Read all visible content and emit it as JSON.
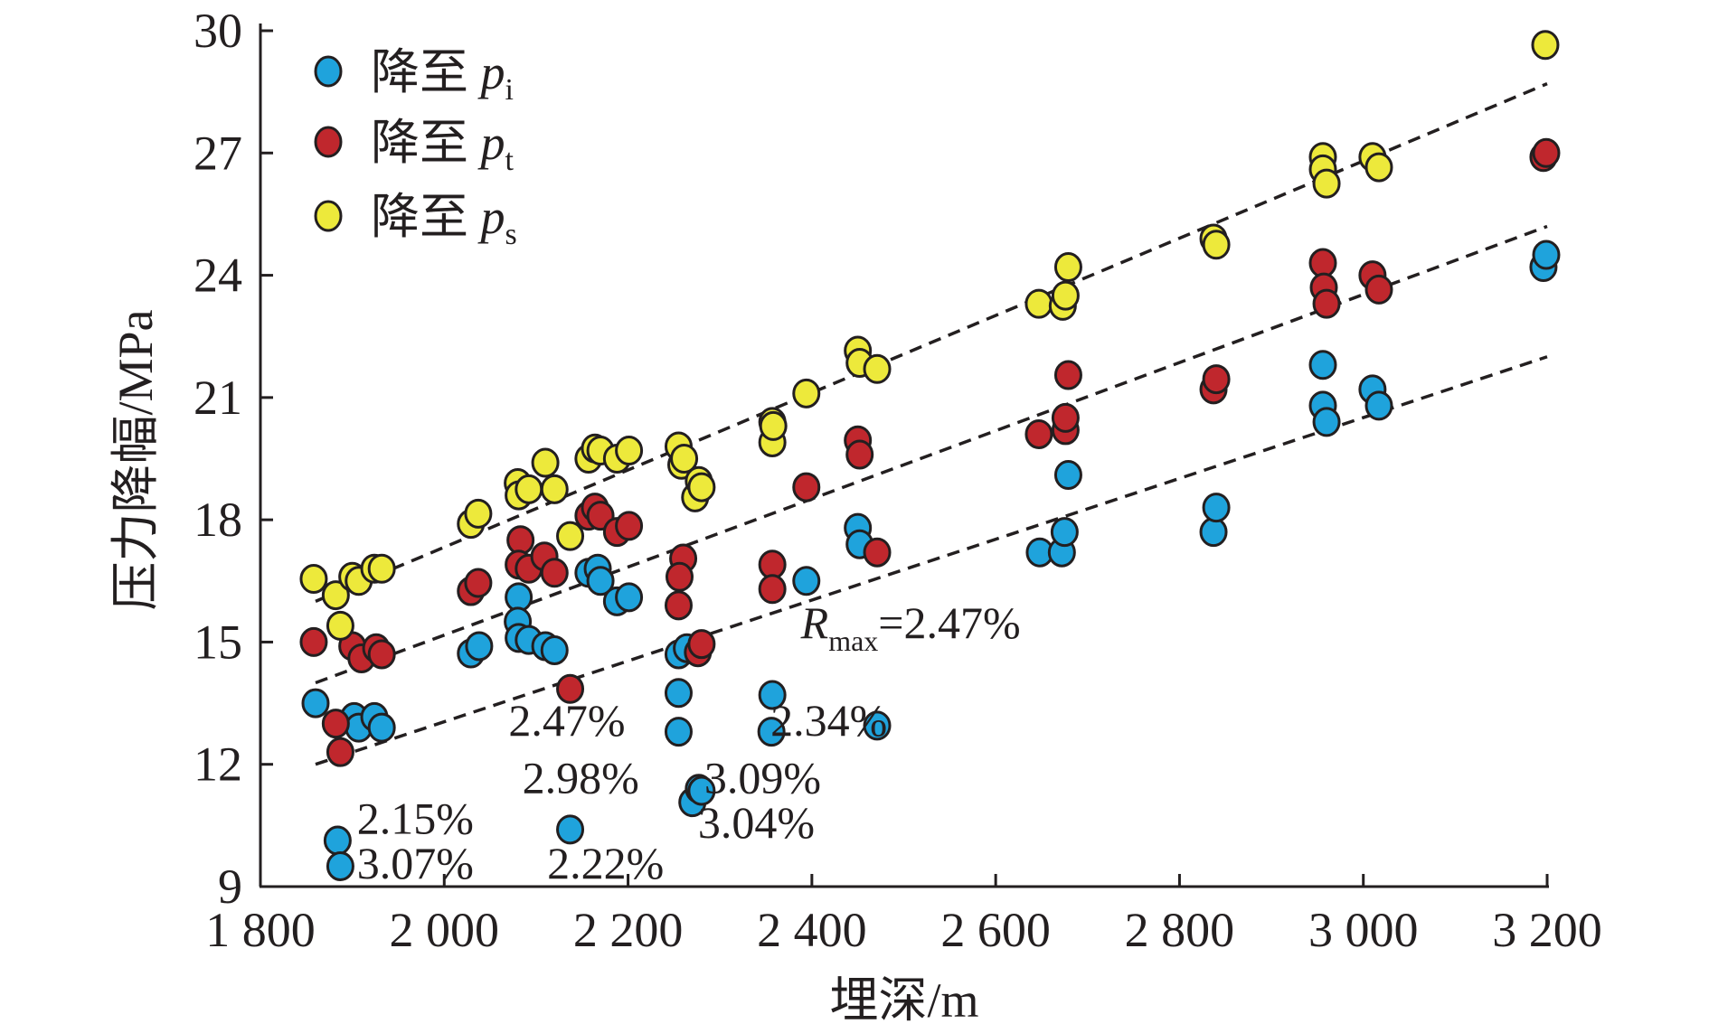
{
  "chart_data": {
    "type": "scatter",
    "title": "",
    "xlabel": "埋深/m",
    "ylabel": "压力降幅/MPa",
    "xlim": [
      1800,
      3200
    ],
    "ylim": [
      9,
      30
    ],
    "xticks": [
      1800,
      2000,
      2200,
      2400,
      2600,
      2800,
      3000,
      3200
    ],
    "xtick_labels": [
      "1 800",
      "2 000",
      "2 200",
      "2 400",
      "2 600",
      "2 800",
      "3 000",
      "3 200"
    ],
    "yticks": [
      9,
      12,
      15,
      18,
      21,
      24,
      27,
      30
    ],
    "ytick_labels": [
      "9",
      "12",
      "15",
      "18",
      "21",
      "24",
      "27",
      "30"
    ],
    "grid": false,
    "legend_position": "top-left",
    "series": [
      {
        "name": "降至 pi",
        "legend_main": "降至 ",
        "legend_p": "p",
        "legend_sub": "i",
        "color": "#1fa3dc",
        "points": [
          [
            1860,
            13.5
          ],
          [
            1902,
            13.16
          ],
          [
            1907,
            12.9
          ],
          [
            1924,
            13.16
          ],
          [
            1932,
            12.9
          ],
          [
            1884,
            10.13
          ],
          [
            1887,
            9.5
          ],
          [
            2029,
            14.72
          ],
          [
            2038,
            14.9
          ],
          [
            2081,
            16.1
          ],
          [
            2080,
            15.5
          ],
          [
            2081,
            15.1
          ],
          [
            2092,
            15.05
          ],
          [
            2110,
            14.9
          ],
          [
            2120,
            14.8
          ],
          [
            2157,
            16.7
          ],
          [
            2167,
            16.8
          ],
          [
            2170,
            16.5
          ],
          [
            2188,
            16.0
          ],
          [
            2201,
            16.1
          ],
          [
            2255,
            14.7
          ],
          [
            2264,
            14.85
          ],
          [
            2255,
            13.75
          ],
          [
            2255,
            12.8
          ],
          [
            2137,
            10.4
          ],
          [
            2270,
            11.07
          ],
          [
            2277,
            11.4
          ],
          [
            2280,
            11.35
          ],
          [
            2357,
            13.7
          ],
          [
            2356,
            12.8
          ],
          [
            2471,
            12.95
          ],
          [
            2394,
            16.5
          ],
          [
            2450,
            17.8
          ],
          [
            2452,
            17.4
          ],
          [
            2648,
            17.2
          ],
          [
            2672,
            17.2
          ],
          [
            2675,
            17.7
          ],
          [
            2679,
            19.1
          ],
          [
            2837,
            17.7
          ],
          [
            2840,
            18.3
          ],
          [
            2956,
            21.8
          ],
          [
            2956,
            20.8
          ],
          [
            2960,
            20.4
          ],
          [
            3010,
            21.2
          ],
          [
            3017,
            20.8
          ],
          [
            3196,
            24.2
          ],
          [
            3199,
            24.5
          ]
        ],
        "trend": [
          [
            1860,
            12.0
          ],
          [
            3200,
            22.0
          ]
        ]
      },
      {
        "name": "降至 pt",
        "legend_main": "降至 ",
        "legend_p": "p",
        "legend_sub": "t",
        "color": "#c0272d",
        "points": [
          [
            1858,
            15.0
          ],
          [
            1882,
            13.0
          ],
          [
            1887,
            12.3
          ],
          [
            1900,
            14.9
          ],
          [
            1910,
            14.6
          ],
          [
            1926,
            14.85
          ],
          [
            1932,
            14.7
          ],
          [
            2029,
            16.25
          ],
          [
            2037,
            16.45
          ],
          [
            2083,
            17.5
          ],
          [
            2081,
            16.9
          ],
          [
            2092,
            16.8
          ],
          [
            2109,
            17.1
          ],
          [
            2120,
            16.7
          ],
          [
            2137,
            13.85
          ],
          [
            2157,
            18.1
          ],
          [
            2164,
            18.3
          ],
          [
            2170,
            18.1
          ],
          [
            2188,
            17.7
          ],
          [
            2201,
            17.85
          ],
          [
            2255,
            15.9
          ],
          [
            2260,
            17.05
          ],
          [
            2256,
            16.6
          ],
          [
            2276,
            14.75
          ],
          [
            2280,
            14.95
          ],
          [
            2357,
            16.9
          ],
          [
            2357,
            16.3
          ],
          [
            2394,
            18.8
          ],
          [
            2450,
            19.95
          ],
          [
            2452,
            19.6
          ],
          [
            2471,
            17.2
          ],
          [
            2647,
            20.1
          ],
          [
            2676,
            20.2
          ],
          [
            2676,
            20.5
          ],
          [
            2679,
            21.55
          ],
          [
            2837,
            21.2
          ],
          [
            2840,
            21.45
          ],
          [
            2956,
            24.3
          ],
          [
            2957,
            23.7
          ],
          [
            2960,
            23.3
          ],
          [
            3010,
            24.0
          ],
          [
            3017,
            23.65
          ],
          [
            3196,
            26.9
          ],
          [
            3199,
            27.0
          ]
        ],
        "trend": [
          [
            1860,
            14.0
          ],
          [
            3200,
            25.2
          ]
        ]
      },
      {
        "name": "降至 ps",
        "legend_main": "降至 ",
        "legend_p": "p",
        "legend_sub": "s",
        "color": "#ede93b",
        "points": [
          [
            1858,
            16.55
          ],
          [
            1882,
            16.15
          ],
          [
            1887,
            15.4
          ],
          [
            1900,
            16.6
          ],
          [
            1907,
            16.5
          ],
          [
            1924,
            16.8
          ],
          [
            1932,
            16.8
          ],
          [
            2029,
            17.9
          ],
          [
            2037,
            18.15
          ],
          [
            2080,
            18.9
          ],
          [
            2081,
            18.6
          ],
          [
            2092,
            18.75
          ],
          [
            2110,
            19.4
          ],
          [
            2120,
            18.75
          ],
          [
            2137,
            17.6
          ],
          [
            2157,
            19.5
          ],
          [
            2164,
            19.75
          ],
          [
            2170,
            19.7
          ],
          [
            2188,
            19.5
          ],
          [
            2201,
            19.7
          ],
          [
            2255,
            19.8
          ],
          [
            2258,
            19.35
          ],
          [
            2261,
            19.5
          ],
          [
            2273,
            18.55
          ],
          [
            2277,
            18.95
          ],
          [
            2280,
            18.8
          ],
          [
            2357,
            20.4
          ],
          [
            2357,
            19.9
          ],
          [
            2358,
            20.3
          ],
          [
            2394,
            21.1
          ],
          [
            2450,
            22.15
          ],
          [
            2452,
            21.85
          ],
          [
            2471,
            21.7
          ],
          [
            2647,
            23.3
          ],
          [
            2673,
            23.25
          ],
          [
            2676,
            23.5
          ],
          [
            2679,
            24.2
          ],
          [
            2837,
            24.9
          ],
          [
            2840,
            24.75
          ],
          [
            2956,
            26.9
          ],
          [
            2956,
            26.6
          ],
          [
            2960,
            26.25
          ],
          [
            3010,
            26.9
          ],
          [
            3017,
            26.65
          ],
          [
            3198,
            29.65
          ]
        ],
        "trend": [
          [
            1860,
            16.0
          ],
          [
            3200,
            28.7
          ]
        ]
      }
    ],
    "annotations": [
      {
        "text": "2.15%",
        "x": 1905,
        "y": 10.3
      },
      {
        "text": "3.07%",
        "x": 1905,
        "y": 9.2
      },
      {
        "text": "2.47%",
        "x": 2070,
        "y": 12.7
      },
      {
        "text": "2.98%",
        "x": 2085,
        "y": 11.3
      },
      {
        "text": "2.22%",
        "x": 2112,
        "y": 9.2
      },
      {
        "text": "3.09%",
        "x": 2283,
        "y": 11.3
      },
      {
        "text": "3.04%",
        "x": 2276,
        "y": 10.2
      },
      {
        "text": "2.34%",
        "x": 2355,
        "y": 12.7
      }
    ],
    "rmax": {
      "main": "R",
      "sub": "max",
      "value": "=2.47%",
      "x": 2388,
      "y": 15.1
    }
  }
}
